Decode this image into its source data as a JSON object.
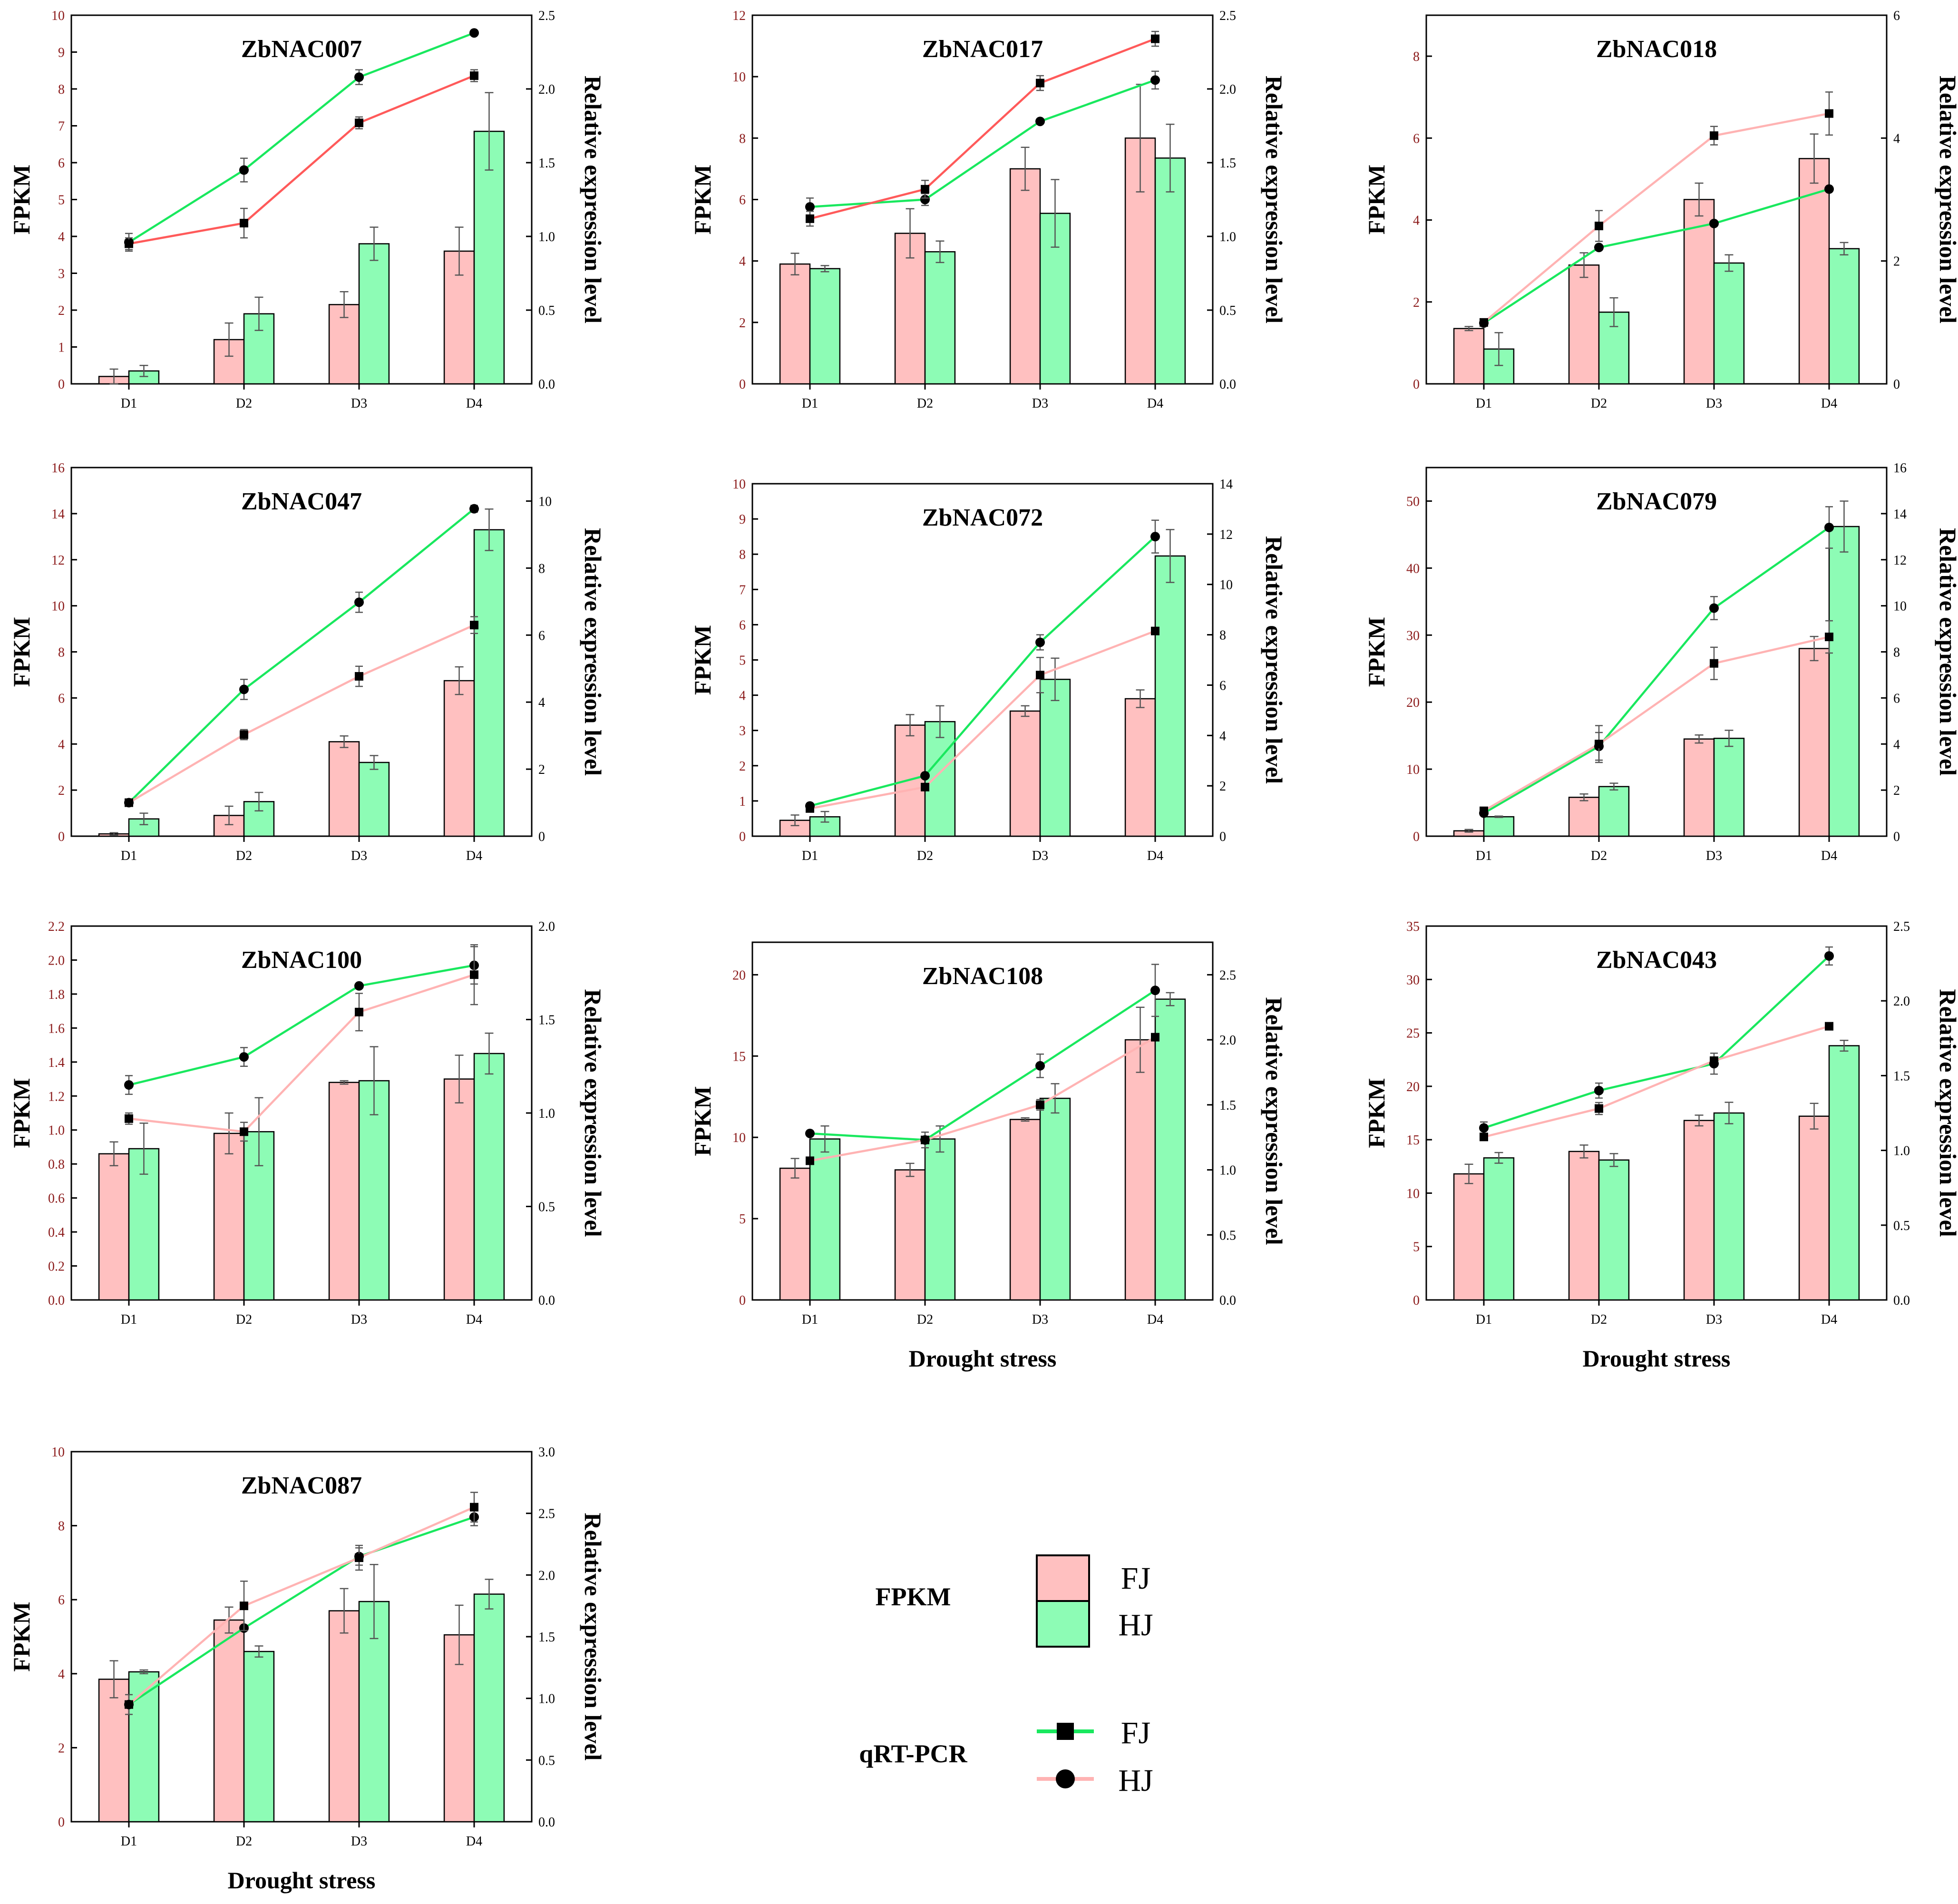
{
  "colors": {
    "fj_bar": "#ffc0c0",
    "hj_bar": "#8dfcb5",
    "fj_line": "#19e85e",
    "hj_line": "#ff5a5a",
    "hj_line_light": "#ffb3b3",
    "left_axis": "#8b1a1a",
    "error": "#555555"
  },
  "legend": {
    "fpkm_label": "FPKM",
    "fpkm_fj": "FJ",
    "fpkm_hj": "HJ",
    "qrt_label": "qRT-PCR",
    "qrt_fj": "FJ",
    "qrt_hj": "HJ"
  },
  "chart_data": [
    {
      "type": "bar",
      "title": "ZbNAC007",
      "categories": [
        "D1",
        "D2",
        "D3",
        "D4"
      ],
      "ylabel": "FPKM",
      "y2label": "Relative expression level",
      "xlabel": "",
      "ylim": [
        0,
        10
      ],
      "yticks": [
        0,
        1,
        2,
        3,
        4,
        5,
        6,
        7,
        8,
        9,
        10
      ],
      "y2lim": [
        0,
        2.5
      ],
      "y2ticks": [
        0.0,
        0.5,
        1.0,
        1.5,
        2.0,
        2.5
      ],
      "y2dec": 1,
      "line_color": "dark",
      "series": [
        {
          "name": "FPKM FJ",
          "values": [
            0.2,
            1.2,
            2.15,
            3.6
          ],
          "errors": [
            0.2,
            0.45,
            0.35,
            0.65
          ]
        },
        {
          "name": "FPKM HJ",
          "values": [
            0.35,
            1.9,
            3.8,
            6.85
          ],
          "errors": [
            0.15,
            0.45,
            0.45,
            1.05
          ]
        },
        {
          "name": "qRT-PCR FJ",
          "values": [
            0.96,
            1.45,
            2.08,
            2.38
          ],
          "errors": [
            0.06,
            0.08,
            0.05,
            0.0
          ]
        },
        {
          "name": "qRT-PCR HJ",
          "values": [
            0.95,
            1.09,
            1.77,
            2.09
          ],
          "errors": [
            0.04,
            0.1,
            0.04,
            0.04
          ]
        }
      ]
    },
    {
      "type": "bar",
      "title": "ZbNAC017",
      "categories": [
        "D1",
        "D2",
        "D3",
        "D4"
      ],
      "ylabel": "FPKM",
      "y2label": "Relative expression level",
      "xlabel": "",
      "ylim": [
        0,
        12
      ],
      "yticks": [
        0,
        2,
        4,
        6,
        8,
        10,
        12
      ],
      "y2lim": [
        0,
        2.5
      ],
      "y2ticks": [
        0.0,
        0.5,
        1.0,
        1.5,
        2.0,
        2.5
      ],
      "y2dec": 1,
      "line_color": "dark",
      "series": [
        {
          "name": "FPKM FJ",
          "values": [
            3.9,
            4.9,
            7.0,
            8.0
          ],
          "errors": [
            0.35,
            0.8,
            0.7,
            1.75
          ]
        },
        {
          "name": "FPKM HJ",
          "values": [
            3.75,
            4.3,
            5.55,
            7.35
          ],
          "errors": [
            0.1,
            0.35,
            1.1,
            1.1
          ]
        },
        {
          "name": "qRT-PCR FJ",
          "values": [
            1.2,
            1.25,
            1.78,
            2.06
          ],
          "errors": [
            0.06,
            0.04,
            0.0,
            0.06
          ]
        },
        {
          "name": "qRT-PCR HJ",
          "values": [
            1.12,
            1.32,
            2.04,
            2.34
          ],
          "errors": [
            0.05,
            0.06,
            0.05,
            0.05
          ]
        }
      ]
    },
    {
      "type": "bar",
      "title": "ZbNAC018",
      "categories": [
        "D1",
        "D2",
        "D3",
        "D4"
      ],
      "ylabel": "FPKM",
      "y2label": "Relative expression level",
      "xlabel": "",
      "ylim": [
        0,
        9
      ],
      "yticks": [
        0,
        2,
        4,
        6,
        8
      ],
      "y2lim": [
        0,
        6
      ],
      "y2ticks": [
        0,
        2,
        4,
        6
      ],
      "y2dec": 0,
      "line_color": "light",
      "series": [
        {
          "name": "FPKM FJ",
          "values": [
            1.35,
            2.9,
            4.5,
            5.5
          ],
          "errors": [
            0.05,
            0.3,
            0.4,
            0.6
          ]
        },
        {
          "name": "FPKM HJ",
          "values": [
            0.85,
            1.75,
            2.95,
            3.3
          ],
          "errors": [
            0.4,
            0.35,
            0.2,
            0.15
          ]
        },
        {
          "name": "qRT-PCR FJ",
          "values": [
            0.99,
            2.22,
            2.61,
            3.17
          ],
          "errors": [
            0.05,
            0.0,
            0.0,
            0.0
          ]
        },
        {
          "name": "qRT-PCR HJ",
          "values": [
            1.0,
            2.57,
            4.04,
            4.4
          ],
          "errors": [
            0.05,
            0.25,
            0.15,
            0.35
          ]
        }
      ]
    },
    {
      "type": "bar",
      "title": "ZbNAC047",
      "categories": [
        "D1",
        "D2",
        "D3",
        "D4"
      ],
      "ylabel": "FPKM",
      "y2label": "Relative expression level",
      "xlabel": "",
      "ylim": [
        0,
        16
      ],
      "yticks": [
        0,
        2,
        4,
        6,
        8,
        10,
        12,
        14,
        16
      ],
      "y2lim": [
        0,
        11
      ],
      "y2ticks": [
        0,
        2,
        4,
        6,
        8,
        10
      ],
      "y2dec": 0,
      "line_color": "light",
      "series": [
        {
          "name": "FPKM FJ",
          "values": [
            0.1,
            0.9,
            4.1,
            6.75
          ],
          "errors": [
            0.05,
            0.4,
            0.25,
            0.6
          ]
        },
        {
          "name": "FPKM HJ",
          "values": [
            0.75,
            1.5,
            3.2,
            13.3
          ],
          "errors": [
            0.25,
            0.4,
            0.3,
            0.9
          ]
        },
        {
          "name": "qRT-PCR FJ",
          "values": [
            1.0,
            4.38,
            6.98,
            9.77
          ],
          "errors": [
            0.05,
            0.3,
            0.3,
            0.1
          ]
        },
        {
          "name": "qRT-PCR HJ",
          "values": [
            1.0,
            3.03,
            4.77,
            6.3
          ],
          "errors": [
            0.05,
            0.15,
            0.3,
            0.25
          ]
        }
      ]
    },
    {
      "type": "bar",
      "title": "ZbNAC072",
      "categories": [
        "D1",
        "D2",
        "D3",
        "D4"
      ],
      "ylabel": "FPKM",
      "y2label": "Relative expression level",
      "xlabel": "",
      "ylim": [
        0,
        10
      ],
      "yticks": [
        0,
        1,
        2,
        3,
        4,
        5,
        6,
        7,
        8,
        9,
        10
      ],
      "y2lim": [
        0,
        14
      ],
      "y2ticks": [
        0,
        2,
        4,
        6,
        8,
        10,
        12,
        14
      ],
      "y2dec": 0,
      "line_color": "light",
      "series": [
        {
          "name": "FPKM FJ",
          "values": [
            0.45,
            3.15,
            3.55,
            3.9
          ],
          "errors": [
            0.15,
            0.3,
            0.15,
            0.25
          ]
        },
        {
          "name": "FPKM HJ",
          "values": [
            0.55,
            3.25,
            4.45,
            7.95
          ],
          "errors": [
            0.15,
            0.45,
            0.6,
            0.75
          ]
        },
        {
          "name": "qRT-PCR FJ",
          "values": [
            1.2,
            2.4,
            7.7,
            11.9
          ],
          "errors": [
            0.1,
            0.0,
            0.3,
            0.65
          ]
        },
        {
          "name": "qRT-PCR HJ",
          "values": [
            1.1,
            1.95,
            6.4,
            8.15
          ],
          "errors": [
            0.0,
            0.0,
            0.7,
            0.0
          ]
        }
      ]
    },
    {
      "type": "bar",
      "title": "ZbNAC079",
      "categories": [
        "D1",
        "D2",
        "D3",
        "D4"
      ],
      "ylabel": "FPKM",
      "y2label": "Relative expression level",
      "xlabel": "",
      "ylim": [
        0,
        55
      ],
      "yticks": [
        0,
        10,
        20,
        30,
        40,
        50
      ],
      "y2lim": [
        0,
        16
      ],
      "y2ticks": [
        0,
        2,
        4,
        6,
        8,
        10,
        12,
        14,
        16
      ],
      "y2dec": 0,
      "line_color": "light",
      "series": [
        {
          "name": "FPKM FJ",
          "values": [
            0.8,
            5.8,
            14.5,
            28.0
          ],
          "errors": [
            0.2,
            0.5,
            0.6,
            1.8
          ]
        },
        {
          "name": "FPKM HJ",
          "values": [
            2.9,
            7.4,
            14.6,
            46.2
          ],
          "errors": [
            0.1,
            0.5,
            1.2,
            3.8
          ]
        },
        {
          "name": "qRT-PCR FJ",
          "values": [
            1.0,
            3.9,
            9.9,
            13.4
          ],
          "errors": [
            0.0,
            0.6,
            0.5,
            0.9
          ]
        },
        {
          "name": "qRT-PCR HJ",
          "values": [
            1.1,
            4.0,
            7.5,
            8.65
          ],
          "errors": [
            0.15,
            0.8,
            0.7,
            0.7
          ]
        }
      ]
    },
    {
      "type": "bar",
      "title": "ZbNAC100",
      "categories": [
        "D1",
        "D2",
        "D3",
        "D4"
      ],
      "ylabel": "FPKM",
      "y2label": "Relative expression level",
      "xlabel": "",
      "ylim": [
        0,
        2.2
      ],
      "yticks": [
        0.0,
        0.2,
        0.4,
        0.6,
        0.8,
        1.0,
        1.2,
        1.4,
        1.6,
        1.8,
        2.0,
        2.2
      ],
      "ydec": 1,
      "y2lim": [
        0,
        2.0
      ],
      "y2ticks": [
        0.0,
        0.5,
        1.0,
        1.5,
        2.0
      ],
      "y2dec": 1,
      "line_color": "light",
      "series": [
        {
          "name": "FPKM FJ",
          "values": [
            0.86,
            0.98,
            1.28,
            1.3
          ],
          "errors": [
            0.07,
            0.12,
            0.01,
            0.14
          ]
        },
        {
          "name": "FPKM HJ",
          "values": [
            0.89,
            0.99,
            1.29,
            1.45
          ],
          "errors": [
            0.15,
            0.2,
            0.2,
            0.12
          ]
        },
        {
          "name": "qRT-PCR FJ",
          "values": [
            1.15,
            1.3,
            1.68,
            1.79
          ],
          "errors": [
            0.05,
            0.05,
            0.0,
            0.1
          ]
        },
        {
          "name": "qRT-PCR HJ",
          "values": [
            0.97,
            0.9,
            1.54,
            1.74
          ],
          "errors": [
            0.03,
            0.05,
            0.1,
            0.16
          ]
        }
      ]
    },
    {
      "type": "bar",
      "title": "ZbNAC108",
      "categories": [
        "D1",
        "D2",
        "D3",
        "D4"
      ],
      "ylabel": "FPKM",
      "y2label": "Relative expression level",
      "xlabel": "Drought stress",
      "ylim": [
        0,
        22
      ],
      "yticks": [
        0,
        5,
        10,
        15,
        20
      ],
      "y2lim": [
        0,
        2.75
      ],
      "y2ticks": [
        0.0,
        0.5,
        1.0,
        1.5,
        2.0,
        2.5
      ],
      "y2dec": 1,
      "line_color": "light",
      "series": [
        {
          "name": "FPKM FJ",
          "values": [
            8.1,
            8.0,
            11.1,
            16.0
          ],
          "errors": [
            0.6,
            0.4,
            0.1,
            2.0
          ]
        },
        {
          "name": "FPKM HJ",
          "values": [
            9.9,
            9.9,
            12.4,
            18.5
          ],
          "errors": [
            0.8,
            0.8,
            0.9,
            0.4
          ]
        },
        {
          "name": "qRT-PCR FJ",
          "values": [
            1.28,
            1.23,
            1.8,
            2.38
          ],
          "errors": [
            0.0,
            0.06,
            0.09,
            0.2
          ]
        },
        {
          "name": "qRT-PCR HJ",
          "values": [
            1.07,
            1.23,
            1.5,
            2.02
          ],
          "errors": [
            0.0,
            0.0,
            0.04,
            0.0
          ]
        }
      ]
    },
    {
      "type": "bar",
      "title": "ZbNAC043",
      "categories": [
        "D1",
        "D2",
        "D3",
        "D4"
      ],
      "ylabel": "FPKM",
      "y2label": "Relative expression level",
      "xlabel": "Drought stress",
      "ylim": [
        0,
        35
      ],
      "yticks": [
        0,
        5,
        10,
        15,
        20,
        25,
        30,
        35
      ],
      "y2lim": [
        0,
        2.5
      ],
      "y2ticks": [
        0.0,
        0.5,
        1.0,
        1.5,
        2.0,
        2.5
      ],
      "y2dec": 1,
      "line_color": "light",
      "series": [
        {
          "name": "FPKM FJ",
          "values": [
            11.8,
            13.9,
            16.8,
            17.2
          ],
          "errors": [
            0.9,
            0.6,
            0.5,
            1.2
          ]
        },
        {
          "name": "FPKM HJ",
          "values": [
            13.3,
            13.1,
            17.5,
            23.8
          ],
          "errors": [
            0.5,
            0.6,
            1.0,
            0.5
          ]
        },
        {
          "name": "qRT-PCR FJ",
          "values": [
            1.15,
            1.4,
            1.58,
            2.3
          ],
          "errors": [
            0.04,
            0.05,
            0.07,
            0.06
          ]
        },
        {
          "name": "qRT-PCR HJ",
          "values": [
            1.09,
            1.28,
            1.6,
            1.83
          ],
          "errors": [
            0.0,
            0.04,
            0.0,
            0.0
          ]
        }
      ]
    },
    {
      "type": "bar",
      "title": "ZbNAC087",
      "categories": [
        "D1",
        "D2",
        "D3",
        "D4"
      ],
      "ylabel": "FPKM",
      "y2label": "Relative expression level",
      "xlabel": "Drought stress",
      "ylim": [
        0,
        10
      ],
      "yticks": [
        0,
        2,
        4,
        6,
        8,
        10
      ],
      "y2lim": [
        0,
        3.0
      ],
      "y2ticks": [
        0.0,
        0.5,
        1.0,
        1.5,
        2.0,
        2.5,
        3.0
      ],
      "y2dec": 1,
      "line_color": "light",
      "series": [
        {
          "name": "FPKM FJ",
          "values": [
            3.85,
            5.45,
            5.7,
            5.05
          ],
          "errors": [
            0.5,
            0.35,
            0.6,
            0.8
          ]
        },
        {
          "name": "FPKM HJ",
          "values": [
            4.05,
            4.6,
            5.95,
            6.15
          ],
          "errors": [
            0.05,
            0.15,
            1.0,
            0.4
          ]
        },
        {
          "name": "qRT-PCR FJ",
          "values": [
            0.95,
            1.57,
            2.15,
            2.47
          ],
          "errors": [
            0.08,
            0.0,
            0.07,
            0.07
          ]
        },
        {
          "name": "qRT-PCR HJ",
          "values": [
            0.95,
            1.75,
            2.14,
            2.55
          ],
          "errors": [
            0.0,
            0.2,
            0.1,
            0.12
          ]
        }
      ]
    }
  ]
}
